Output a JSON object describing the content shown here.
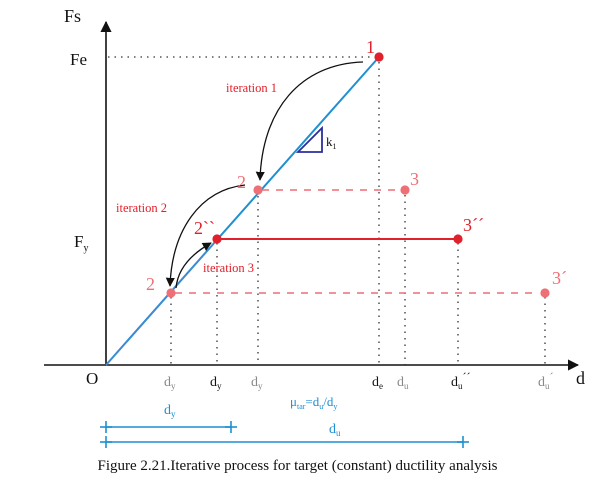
{
  "axes": {
    "y_label": "Fs",
    "x_label": "d",
    "origin_label": "O"
  },
  "y_ticks": {
    "fe": "Fe",
    "fy": "F",
    "fy_sub": "y"
  },
  "slope": {
    "label": "k",
    "sub": "1"
  },
  "iterations": [
    {
      "label": "iteration 1"
    },
    {
      "label": "iteration 2"
    },
    {
      "label": "iteration 3"
    }
  ],
  "points": {
    "p1": "1",
    "p2": "2",
    "p2b": "2",
    "p2bb": "2``",
    "p3": "3",
    "p3b": "3´",
    "p3bb": "3´´"
  },
  "x_ticks": {
    "dy": "d",
    "dy_sub": "y",
    "de": "d",
    "de_sub": "e",
    "du": "d",
    "du_sub": "u",
    "du2_sup": "´´",
    "du3_sup": "´"
  },
  "formula": {
    "mu": "μ",
    "mu_sub": "tar",
    "eq": "=d",
    "eq_sub": "u",
    "slash": "/d",
    "slash_sub": "y"
  },
  "dims": {
    "dy": "d",
    "dy_sub": "y",
    "du": "d",
    "du_sub": "u"
  },
  "caption": "Figure 2.21.Iterative process for target (constant) ductility analysis",
  "colors": {
    "line": "#1e8fd0",
    "red": "#e0202a",
    "pink": "#ee6f76",
    "axis": "#111111",
    "triangle": "#2b2f9e",
    "dims": "#1e8fd0"
  }
}
